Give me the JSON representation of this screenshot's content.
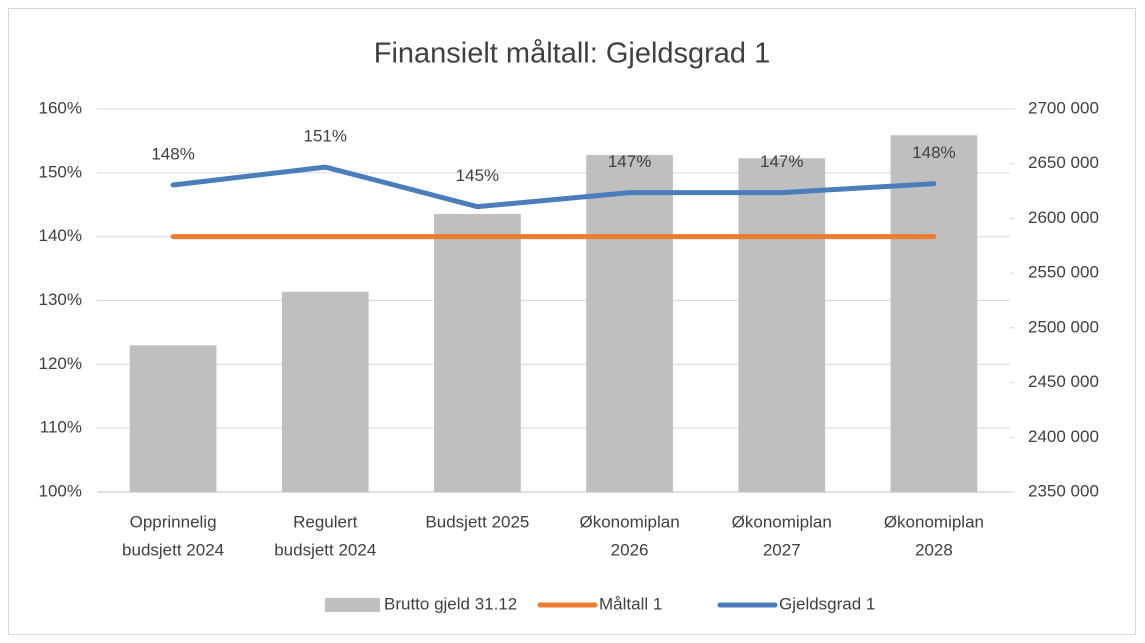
{
  "chart_data": {
    "type": "bar_line",
    "title": "Finansielt måltall: Gjeldsgrad 1",
    "categories": [
      [
        "Opprinnelig",
        "budsjett 2024"
      ],
      [
        "Regulert",
        "budsjett 2024"
      ],
      [
        "Budsjett 2025"
      ],
      [
        "Økonomiplan",
        "2026"
      ],
      [
        "Økonomiplan",
        "2027"
      ],
      [
        "Økonomiplan",
        "2028"
      ]
    ],
    "series": [
      {
        "name": "Brutto gjeld 31.12",
        "type": "bar",
        "axis": "y2",
        "color": "#bfbfbf",
        "values": [
          2484000,
          2533000,
          2604000,
          2658000,
          2655000,
          2676000
        ]
      },
      {
        "name": "Måltall 1",
        "type": "line",
        "color": "#ed7d31",
        "values": [
          140,
          140,
          140,
          140,
          140,
          140
        ]
      },
      {
        "name": "Gjeldsgrad 1",
        "type": "line",
        "color": "#4a7ebb",
        "values": [
          148.1,
          150.9,
          144.7,
          146.9,
          146.9,
          148.3
        ],
        "value_labels": [
          "148%",
          "151%",
          "145%",
          "147%",
          "147%",
          "148%"
        ]
      }
    ],
    "ylim": [
      100,
      160
    ],
    "yticks": [
      {
        "value": 100,
        "label": "100%"
      },
      {
        "value": 110,
        "label": "110%"
      },
      {
        "value": 120,
        "label": "120%"
      },
      {
        "value": 130,
        "label": "130%"
      },
      {
        "value": 140,
        "label": "140%"
      },
      {
        "value": 150,
        "label": "150%"
      },
      {
        "value": 160,
        "label": "160%"
      }
    ],
    "y2lim": [
      2350000,
      2700000
    ],
    "y2ticks": [
      {
        "value": 2350000,
        "label": "2350 000"
      },
      {
        "value": 2400000,
        "label": "2400 000"
      },
      {
        "value": 2450000,
        "label": "2450 000"
      },
      {
        "value": 2500000,
        "label": "2500 000"
      },
      {
        "value": 2550000,
        "label": "2550 000"
      },
      {
        "value": 2600000,
        "label": "2600 000"
      },
      {
        "value": 2650000,
        "label": "2650 000"
      },
      {
        "value": 2700000,
        "label": "2700 000"
      }
    ],
    "grid": true,
    "legend": "bottom"
  }
}
